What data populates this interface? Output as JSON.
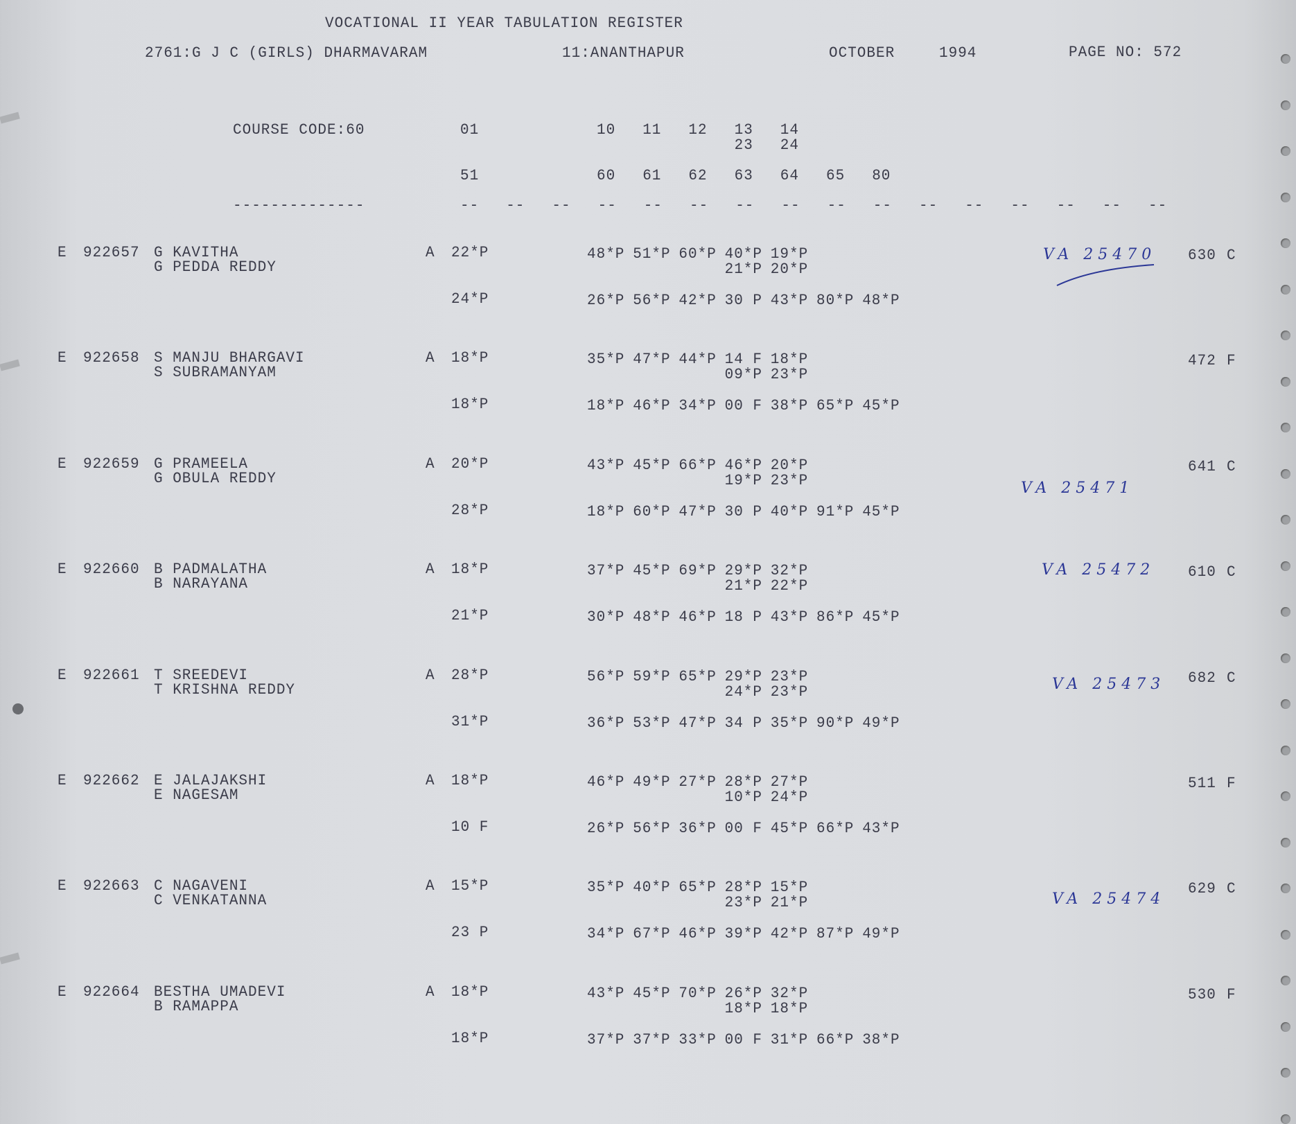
{
  "header": {
    "title": "VOCATIONAL II YEAR TABULATION REGISTER",
    "college": "2761:G J C (GIRLS) DHARMAVARAM",
    "district": "11:ANANTHAPUR",
    "month": "OCTOBER",
    "year": "1994",
    "page_no": "PAGE NO: 572"
  },
  "columns": {
    "course_code": "COURSE CODE:60",
    "row1": [
      "01",
      "10",
      "11",
      "12",
      "13",
      "14"
    ],
    "row2": [
      "23",
      "24"
    ],
    "row3": [
      "51",
      "60",
      "61",
      "62",
      "63",
      "64",
      "65",
      "80"
    ],
    "name_dashes": "--------------",
    "dash": "--"
  },
  "students": [
    {
      "e": "E",
      "reg": "922657",
      "name": "G KAVITHA",
      "father": "G PEDDA REDDY",
      "a": "A",
      "m01": "22*P",
      "marks1": [
        "48*P",
        "51*P",
        "60*P",
        "40*P",
        "19*P"
      ],
      "marks2": [
        "21*P",
        "20*P"
      ],
      "m51": "24*P",
      "marks3": [
        "26*P",
        "56*P",
        "42*P",
        "30 P",
        "43*P",
        "80*P",
        "48*P"
      ],
      "total": "630",
      "result": "C",
      "note": "VA 25470"
    },
    {
      "e": "E",
      "reg": "922658",
      "name": "S MANJU BHARGAVI",
      "father": "S SUBRAMANYAM",
      "a": "A",
      "m01": "18*P",
      "marks1": [
        "35*P",
        "47*P",
        "44*P",
        "14 F",
        "18*P"
      ],
      "marks2": [
        "09*P",
        "23*P"
      ],
      "m51": "18*P",
      "marks3": [
        "18*P",
        "46*P",
        "34*P",
        "00 F",
        "38*P",
        "65*P",
        "45*P"
      ],
      "total": "472",
      "result": "F",
      "note": ""
    },
    {
      "e": "E",
      "reg": "922659",
      "name": "G PRAMEELA",
      "father": "G OBULA REDDY",
      "a": "A",
      "m01": "20*P",
      "marks1": [
        "43*P",
        "45*P",
        "66*P",
        "46*P",
        "20*P"
      ],
      "marks2": [
        "19*P",
        "23*P"
      ],
      "m51": "28*P",
      "marks3": [
        "18*P",
        "60*P",
        "47*P",
        "30 P",
        "40*P",
        "91*P",
        "45*P"
      ],
      "total": "641",
      "result": "C",
      "note": "VA 25471"
    },
    {
      "e": "E",
      "reg": "922660",
      "name": "B PADMALATHA",
      "father": "B NARAYANA",
      "a": "A",
      "m01": "18*P",
      "marks1": [
        "37*P",
        "45*P",
        "69*P",
        "29*P",
        "32*P"
      ],
      "marks2": [
        "21*P",
        "22*P"
      ],
      "m51": "21*P",
      "marks3": [
        "30*P",
        "48*P",
        "46*P",
        "18 P",
        "43*P",
        "86*P",
        "45*P"
      ],
      "total": "610",
      "result": "C",
      "note": "VA 25472"
    },
    {
      "e": "E",
      "reg": "922661",
      "name": "T SREEDEVI",
      "father": "T KRISHNA REDDY",
      "a": "A",
      "m01": "28*P",
      "marks1": [
        "56*P",
        "59*P",
        "65*P",
        "29*P",
        "23*P"
      ],
      "marks2": [
        "24*P",
        "23*P"
      ],
      "m51": "31*P",
      "marks3": [
        "36*P",
        "53*P",
        "47*P",
        "34 P",
        "35*P",
        "90*P",
        "49*P"
      ],
      "total": "682",
      "result": "C",
      "note": "VA 25473"
    },
    {
      "e": "E",
      "reg": "922662",
      "name": "E JALAJAKSHI",
      "father": "E NAGESAM",
      "a": "A",
      "m01": "18*P",
      "marks1": [
        "46*P",
        "49*P",
        "27*P",
        "28*P",
        "27*P"
      ],
      "marks2": [
        "10*P",
        "24*P"
      ],
      "m51": "10 F",
      "marks3": [
        "26*P",
        "56*P",
        "36*P",
        "00 F",
        "45*P",
        "66*P",
        "43*P"
      ],
      "total": "511",
      "result": "F",
      "note": ""
    },
    {
      "e": "E",
      "reg": "922663",
      "name": "C NAGAVENI",
      "father": "C VENKATANNA",
      "a": "A",
      "m01": "15*P",
      "marks1": [
        "35*P",
        "40*P",
        "65*P",
        "28*P",
        "15*P"
      ],
      "marks2": [
        "23*P",
        "21*P"
      ],
      "m51": "23 P",
      "marks3": [
        "34*P",
        "67*P",
        "46*P",
        "39*P",
        "42*P",
        "87*P",
        "49*P"
      ],
      "total": "629",
      "result": "C",
      "note": "VA 25474"
    },
    {
      "e": "E",
      "reg": "922664",
      "name": "BESTHA UMADEVI",
      "father": "B RAMAPPA",
      "a": "A",
      "m01": "18*P",
      "marks1": [
        "43*P",
        "45*P",
        "70*P",
        "26*P",
        "32*P"
      ],
      "marks2": [
        "18*P",
        "18*P"
      ],
      "m51": "18*P",
      "marks3": [
        "37*P",
        "37*P",
        "33*P",
        "00 F",
        "31*P",
        "66*P",
        "38*P"
      ],
      "total": "530",
      "result": "F",
      "note": ""
    }
  ]
}
